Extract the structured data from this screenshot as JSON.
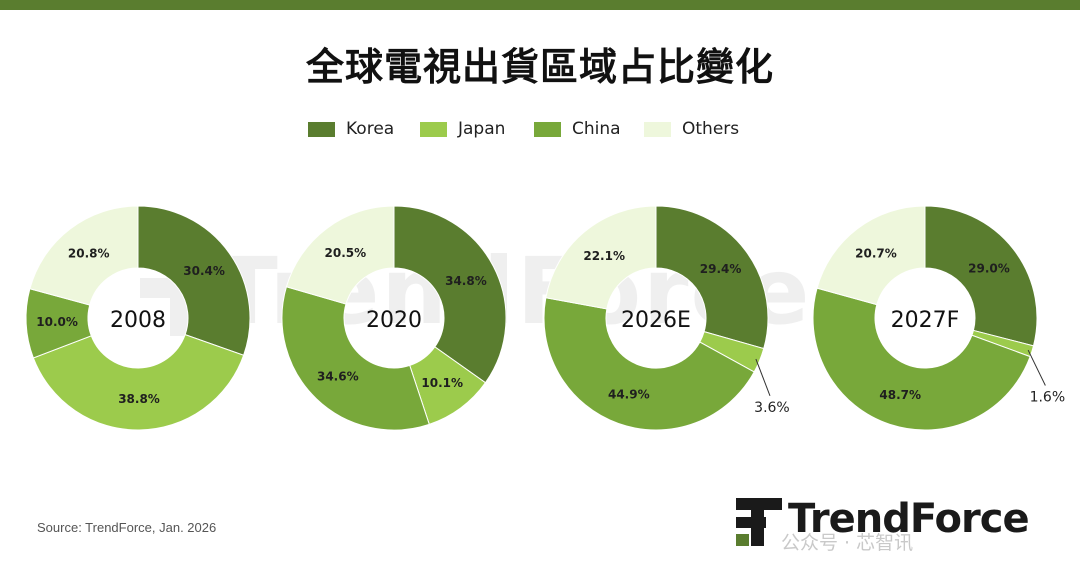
{
  "title": "全球電視出貨區域占比變化",
  "legend": [
    {
      "label": "Korea",
      "color": "#5a7d2f"
    },
    {
      "label": "Japan",
      "color": "#9ccb4c"
    },
    {
      "label": "China",
      "color": "#78a83a"
    },
    {
      "label": "Others",
      "color": "#eef7dc"
    }
  ],
  "source": "Source: TrendForce, Jan. 2026",
  "logo": {
    "text": "TrendForce",
    "icon": "trendforce-logo-icon"
  },
  "watermark": {
    "text": "TrendForce"
  },
  "wechat": "公众号 · 芯智讯",
  "chart_data": [
    {
      "type": "pie",
      "center_label": "2008",
      "categories": [
        "Korea",
        "Japan",
        "China",
        "Others"
      ],
      "values": [
        30.4,
        38.8,
        10.0,
        20.8
      ],
      "labels": [
        "30.4%",
        "38.8%",
        "10.0%",
        "20.8%"
      ],
      "donut": true
    },
    {
      "type": "pie",
      "center_label": "2020",
      "categories": [
        "Korea",
        "Japan",
        "China",
        "Others"
      ],
      "values": [
        34.8,
        10.1,
        34.6,
        20.5
      ],
      "labels": [
        "34.8%",
        "10.1%",
        "34.6%",
        "20.5%"
      ],
      "donut": true
    },
    {
      "type": "pie",
      "center_label": "2026E",
      "categories": [
        "Korea",
        "Japan",
        "China",
        "Others"
      ],
      "values": [
        29.4,
        3.6,
        44.9,
        22.1
      ],
      "labels": [
        "29.4%",
        "3.6%",
        "44.9%",
        "22.1%"
      ],
      "donut": true
    },
    {
      "type": "pie",
      "center_label": "2027F",
      "categories": [
        "Korea",
        "Japan",
        "China",
        "Others"
      ],
      "values": [
        29.0,
        1.6,
        48.7,
        20.7
      ],
      "labels": [
        "29.0%",
        "1.6%",
        "48.7%",
        "20.7%"
      ],
      "donut": true
    }
  ]
}
